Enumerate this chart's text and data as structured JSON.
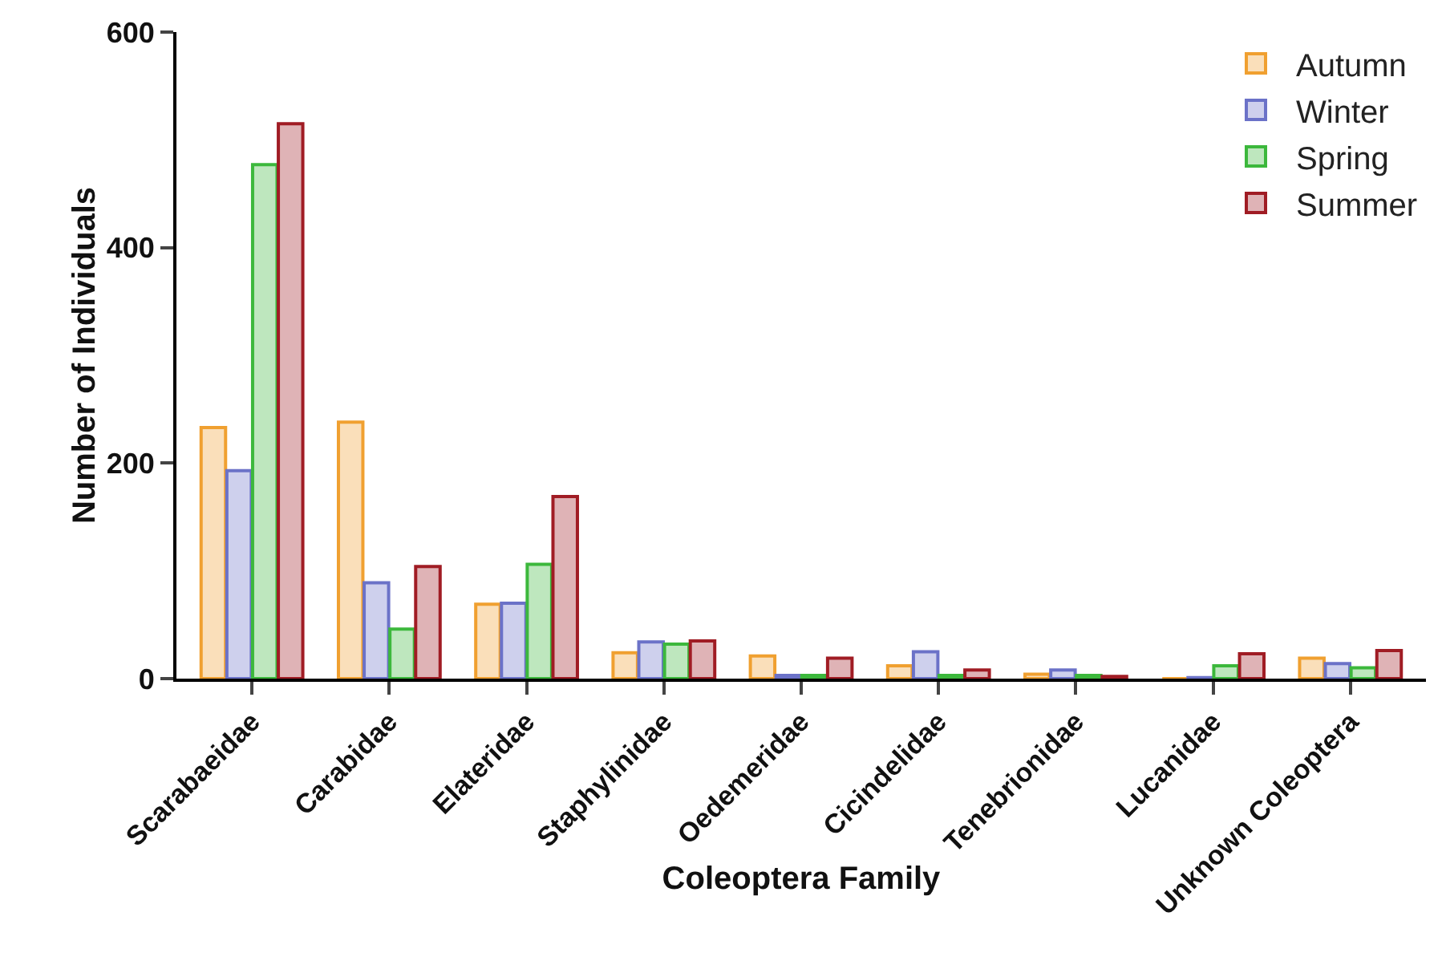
{
  "chart_data": {
    "type": "bar",
    "xlabel": "Coleoptera Family",
    "ylabel": "Number of Individuals",
    "categories": [
      "Scarabaeidae",
      "Carabidae",
      "Elateridae",
      "Staphylinidae",
      "Oedemeridae",
      "Cicindelidae",
      "Tenebrionidae",
      "Lucanidae",
      "Unknown Coleoptera"
    ],
    "series": [
      {
        "name": "Autumn",
        "color": "#f0a030",
        "values": [
          233,
          238,
          69,
          24,
          21,
          12,
          4,
          0,
          19
        ]
      },
      {
        "name": "Winter",
        "color": "#6b72c8",
        "values": [
          193,
          89,
          70,
          34,
          3,
          25,
          8,
          1,
          14
        ]
      },
      {
        "name": "Spring",
        "color": "#3cb83c",
        "values": [
          477,
          46,
          106,
          32,
          3,
          3,
          3,
          12,
          10
        ]
      },
      {
        "name": "Summer",
        "color": "#a01c24",
        "values": [
          515,
          104,
          169,
          35,
          19,
          8,
          2,
          23,
          26
        ]
      }
    ],
    "ylim": [
      0,
      600
    ],
    "yticks": [
      0,
      200,
      400,
      600
    ],
    "grid": false,
    "legend": "top right"
  }
}
